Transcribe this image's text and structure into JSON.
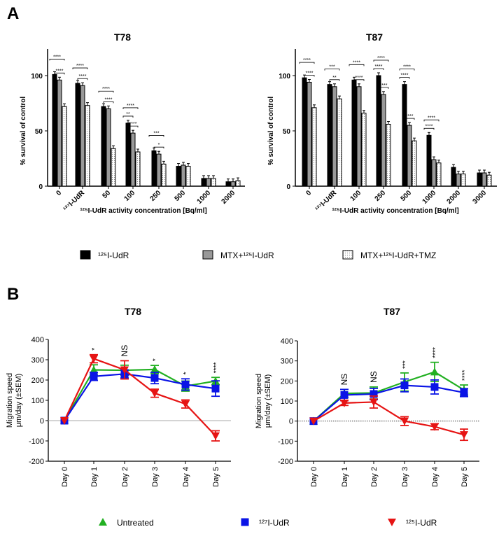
{
  "panels": {
    "a": "A",
    "b": "B"
  },
  "bar_legend": [
    "¹²⁵I-UdR",
    "MTX+¹²⁵I-UdR",
    "MTX+¹²⁵I-UdR+TMZ"
  ],
  "line_legend": [
    "Untreated",
    "¹²⁷I-UdR",
    "¹²⁵I-UdR"
  ],
  "colors": {
    "bar1": "#000000",
    "bar2": "#999999",
    "bar3": "#ffffff",
    "untreated": "#22b022",
    "i127": "#0a14e6",
    "i125": "#e61414"
  },
  "chart_data": [
    {
      "type": "bar",
      "title": "T78",
      "ylabel": "% survival of control",
      "xlabel": "¹²⁵I-UdR activity concentration [Bq/ml]",
      "ylim": [
        0,
        120
      ],
      "yticks": [
        0,
        50,
        100
      ],
      "categories": [
        "0",
        "¹²⁷I-UdR",
        "50",
        "100",
        "250",
        "500",
        "1000",
        "2000"
      ],
      "series": [
        {
          "name": "¹²⁵I-UdR",
          "values": [
            101,
            93,
            72,
            57,
            32,
            18,
            7,
            4
          ]
        },
        {
          "name": "MTX+¹²⁵I-UdR",
          "values": [
            96,
            91,
            70,
            48,
            29,
            19,
            7,
            4
          ]
        },
        {
          "name": "MTX+¹²⁵I-UdR+TMZ",
          "values": [
            72,
            73,
            34,
            31,
            20,
            18,
            7,
            5
          ]
        }
      ],
      "significance": [
        [
          0,
          0,
          2,
          "****"
        ],
        [
          0,
          1,
          2,
          "****"
        ],
        [
          1,
          0,
          2,
          "****"
        ],
        [
          1,
          1,
          2,
          "****"
        ],
        [
          2,
          0,
          2,
          "****"
        ],
        [
          2,
          1,
          2,
          "****"
        ],
        [
          3,
          0,
          2,
          "****"
        ],
        [
          3,
          0,
          1,
          "**"
        ],
        [
          3,
          1,
          2,
          "****"
        ],
        [
          4,
          0,
          2,
          "***"
        ],
        [
          4,
          1,
          2,
          "*"
        ]
      ]
    },
    {
      "type": "bar",
      "title": "T87",
      "ylabel": "% survival of control",
      "xlabel": "¹²⁵I-UdR activity concentration [Bq/ml]",
      "ylim": [
        0,
        120
      ],
      "yticks": [
        0,
        50,
        100
      ],
      "categories": [
        "0",
        "¹²⁷I-UdR",
        "100",
        "250",
        "500",
        "1000",
        "2000",
        "3000"
      ],
      "series": [
        {
          "name": "¹²⁵I-UdR",
          "values": [
            98,
            92,
            96,
            100,
            92,
            46,
            17,
            12
          ]
        },
        {
          "name": "MTX+¹²⁵I-UdR",
          "values": [
            94,
            90,
            90,
            83,
            55,
            24,
            11,
            12
          ]
        },
        {
          "name": "MTX+¹²⁵I-UdR+TMZ",
          "values": [
            71,
            79,
            66,
            56,
            41,
            21,
            11,
            10
          ]
        }
      ],
      "significance": [
        [
          0,
          0,
          2,
          "****"
        ],
        [
          0,
          1,
          2,
          "****"
        ],
        [
          1,
          0,
          2,
          "***"
        ],
        [
          1,
          1,
          2,
          "**"
        ],
        [
          2,
          0,
          2,
          "****"
        ],
        [
          2,
          1,
          2,
          "****"
        ],
        [
          3,
          0,
          1,
          "****"
        ],
        [
          3,
          0,
          2,
          "****"
        ],
        [
          3,
          1,
          2,
          "****"
        ],
        [
          4,
          0,
          1,
          "****"
        ],
        [
          4,
          0,
          2,
          "****"
        ],
        [
          4,
          1,
          2,
          "****"
        ],
        [
          5,
          0,
          1,
          "****"
        ],
        [
          5,
          0,
          2,
          "****"
        ]
      ]
    },
    {
      "type": "line",
      "title": "T78",
      "ylabel": [
        "Migration speed",
        "μm/day (±SEM)"
      ],
      "ylim": [
        -200,
        400
      ],
      "yticks": [
        -200,
        -100,
        0,
        100,
        200,
        300,
        400
      ],
      "zero_line": "solid",
      "categories": [
        "Day 0",
        "Day 1",
        "Day 2",
        "Day 3",
        "Day 4",
        "Day 5"
      ],
      "annotations": [
        "",
        "*",
        "NS",
        "*",
        "*",
        "****"
      ],
      "series": [
        {
          "name": "Untreated",
          "values": [
            0,
            250,
            248,
            252,
            170,
            195
          ],
          "err": [
            0,
            25,
            25,
            20,
            25,
            18
          ]
        },
        {
          "name": "¹²⁷I-UdR",
          "values": [
            0,
            218,
            230,
            210,
            178,
            158
          ],
          "err": [
            0,
            20,
            20,
            28,
            28,
            38
          ]
        },
        {
          "name": "¹²⁵I-UdR",
          "values": [
            0,
            305,
            250,
            135,
            82,
            -75
          ],
          "err": [
            0,
            20,
            45,
            20,
            20,
            25
          ]
        }
      ]
    },
    {
      "type": "line",
      "title": "T87",
      "ylabel": [
        "Migration speed",
        "μm/day (±SEM)"
      ],
      "ylim": [
        -200,
        400
      ],
      "yticks": [
        -200,
        -100,
        0,
        100,
        200,
        300,
        400
      ],
      "zero_line": "dotted",
      "categories": [
        "Day 0",
        "Day 1",
        "Day 2",
        "Day 3",
        "Day 4",
        "Day 5"
      ],
      "annotations": [
        "",
        "NS",
        "NS",
        "***",
        "****",
        "****"
      ],
      "series": [
        {
          "name": "Untreated",
          "values": [
            0,
            138,
            140,
            195,
            245,
            155
          ],
          "err": [
            0,
            20,
            30,
            45,
            48,
            25
          ]
        },
        {
          "name": "¹²⁷I-UdR",
          "values": [
            0,
            130,
            135,
            178,
            170,
            142
          ],
          "err": [
            0,
            28,
            28,
            32,
            35,
            20
          ]
        },
        {
          "name": "¹²⁵I-UdR",
          "values": [
            0,
            90,
            95,
            0,
            -28,
            -68
          ],
          "err": [
            0,
            12,
            30,
            22,
            15,
            28
          ]
        }
      ]
    }
  ]
}
